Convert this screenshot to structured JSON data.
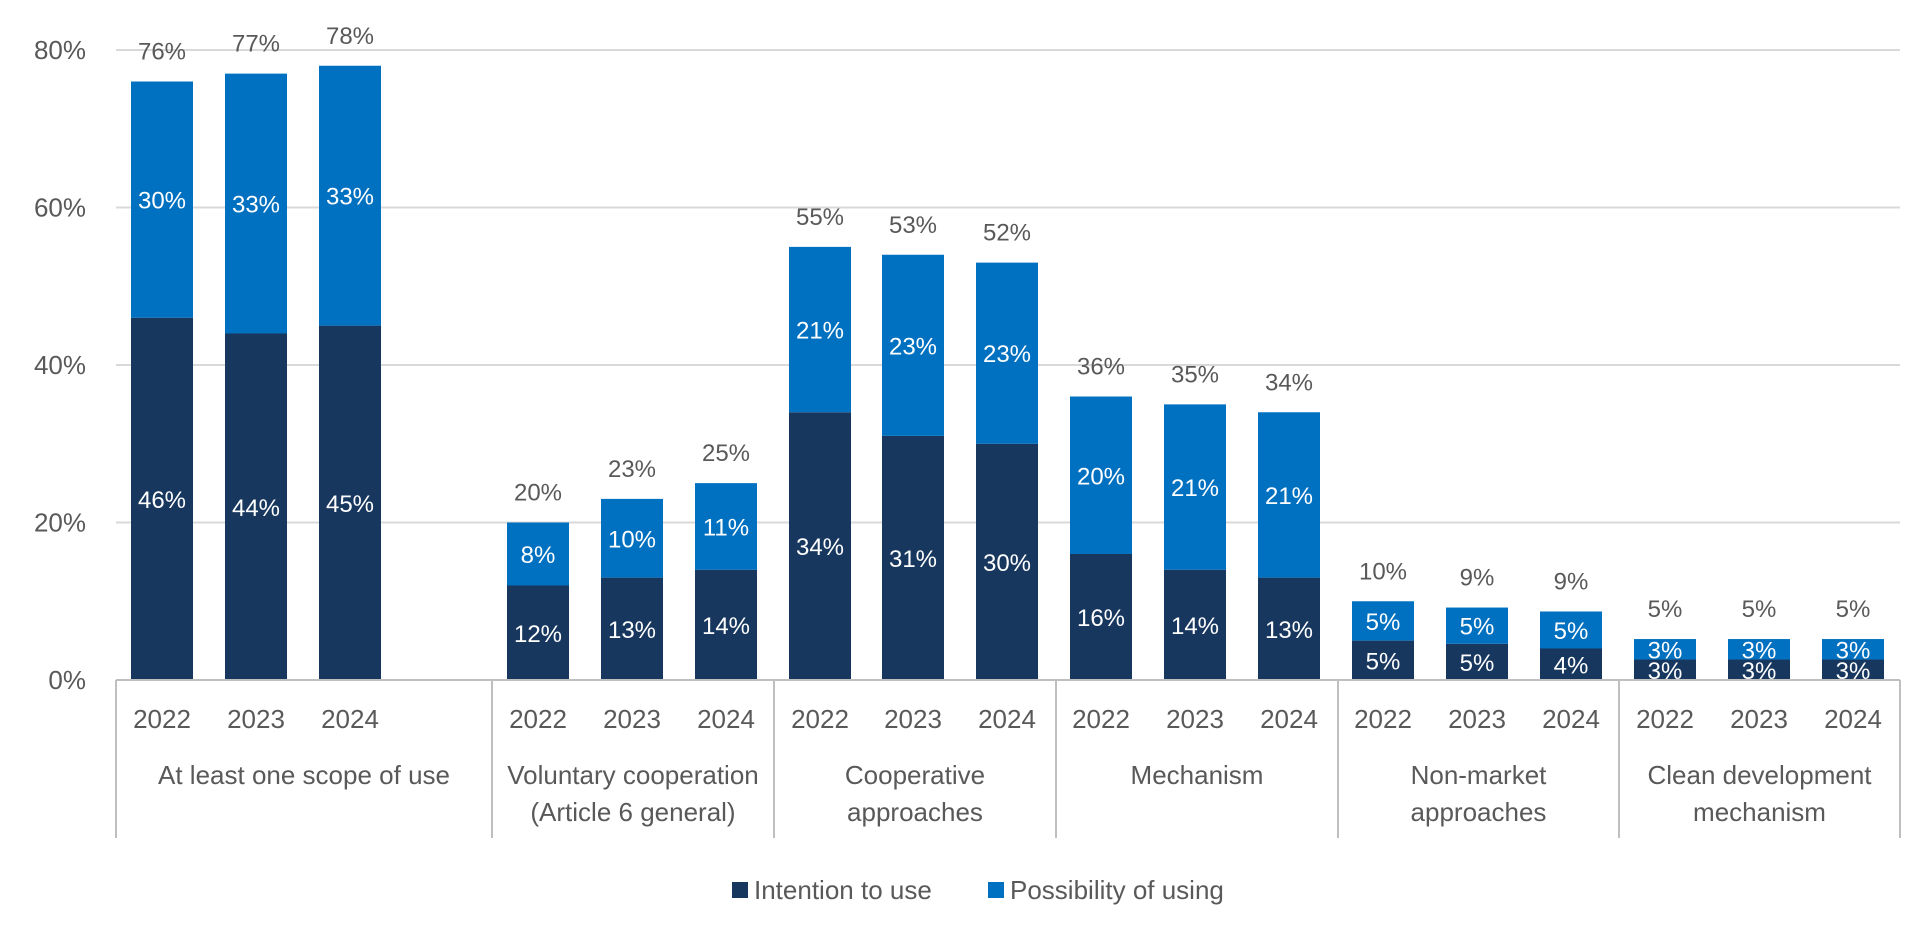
{
  "chart_data": {
    "type": "bar",
    "stacked": true,
    "title": "",
    "xlabel": "",
    "ylabel": "",
    "ylim": [
      0,
      80
    ],
    "y_ticks": [
      "0%",
      "20%",
      "40%",
      "60%",
      "80%"
    ],
    "y_tick_values": [
      0,
      20,
      40,
      60,
      80
    ],
    "grid": true,
    "legend_position": "bottom",
    "series": [
      {
        "name": "Intention to use",
        "color": "#17375e"
      },
      {
        "name": "Possibility of using",
        "color": "#0070c0"
      }
    ],
    "groups": [
      {
        "label_lines": [
          "At least one scope of use"
        ],
        "bars": [
          {
            "year": "2022",
            "intention": 46,
            "possibility": 30,
            "intention_label": "46%",
            "possibility_label": "30%",
            "total_label": "76%"
          },
          {
            "year": "2023",
            "intention": 44,
            "possibility": 33,
            "intention_label": "44%",
            "possibility_label": "33%",
            "total_label": "77%"
          },
          {
            "year": "2024",
            "intention": 45,
            "possibility": 33,
            "intention_label": "45%",
            "possibility_label": "33%",
            "total_label": "78%"
          }
        ]
      },
      {
        "label_lines": [
          "Voluntary cooperation",
          "(Article 6 general)"
        ],
        "bars": [
          {
            "year": "2022",
            "intention": 12,
            "possibility": 8,
            "intention_label": "12%",
            "possibility_label": "8%",
            "total_label": "20%"
          },
          {
            "year": "2023",
            "intention": 13,
            "possibility": 10,
            "intention_label": "13%",
            "possibility_label": "10%",
            "total_label": "23%"
          },
          {
            "year": "2024",
            "intention": 14,
            "possibility": 11,
            "intention_label": "14%",
            "possibility_label": "11%",
            "total_label": "25%"
          }
        ]
      },
      {
        "label_lines": [
          "Cooperative",
          "approaches"
        ],
        "bars": [
          {
            "year": "2022",
            "intention": 34,
            "possibility": 21,
            "intention_label": "34%",
            "possibility_label": "21%",
            "total_label": "55%"
          },
          {
            "year": "2023",
            "intention": 31,
            "possibility": 23,
            "intention_label": "31%",
            "possibility_label": "23%",
            "total_label": "53%"
          },
          {
            "year": "2024",
            "intention": 30,
            "possibility": 23,
            "intention_label": "30%",
            "possibility_label": "23%",
            "total_label": "52%"
          }
        ]
      },
      {
        "label_lines": [
          "Mechanism"
        ],
        "bars": [
          {
            "year": "2022",
            "intention": 16,
            "possibility": 20,
            "intention_label": "16%",
            "possibility_label": "20%",
            "total_label": "36%"
          },
          {
            "year": "2023",
            "intention": 14,
            "possibility": 21,
            "intention_label": "14%",
            "possibility_label": "21%",
            "total_label": "35%"
          },
          {
            "year": "2024",
            "intention": 13,
            "possibility": 21,
            "intention_label": "13%",
            "possibility_label": "21%",
            "total_label": "34%"
          }
        ]
      },
      {
        "label_lines": [
          "Non-market",
          "approaches"
        ],
        "bars": [
          {
            "year": "2022",
            "intention": 5,
            "possibility": 5,
            "intention_label": "5%",
            "possibility_label": "5%",
            "total_label": "10%"
          },
          {
            "year": "2023",
            "intention": 4.6,
            "possibility": 4.6,
            "intention_label": "5%",
            "possibility_label": "5%",
            "total_label": "9%"
          },
          {
            "year": "2024",
            "intention": 4,
            "possibility": 4.7,
            "intention_label": "4%",
            "possibility_label": "5%",
            "total_label": "9%"
          }
        ]
      },
      {
        "label_lines": [
          "Clean development",
          "mechanism"
        ],
        "bars": [
          {
            "year": "2022",
            "intention": 2.6,
            "possibility": 2.6,
            "intention_label": "3%",
            "possibility_label": "3%",
            "total_label": "5%"
          },
          {
            "year": "2023",
            "intention": 2.6,
            "possibility": 2.6,
            "intention_label": "3%",
            "possibility_label": "3%",
            "total_label": "5%"
          },
          {
            "year": "2024",
            "intention": 2.6,
            "possibility": 2.6,
            "intention_label": "3%",
            "possibility_label": "3%",
            "total_label": "5%"
          }
        ]
      }
    ]
  }
}
